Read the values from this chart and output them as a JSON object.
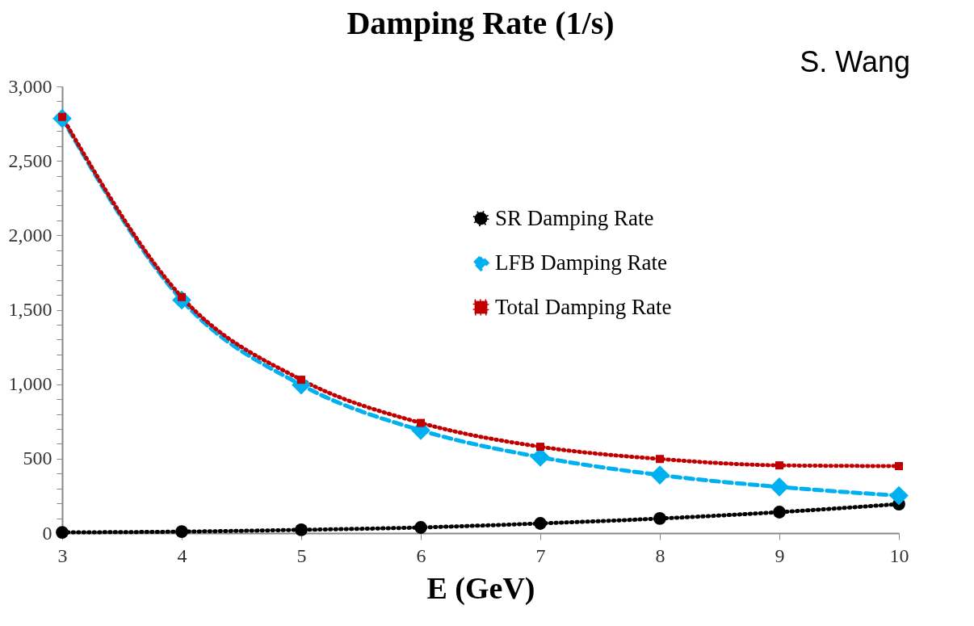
{
  "chart_data": {
    "type": "line",
    "title": "Damping Rate (1/s)",
    "xlabel": "E (GeV)",
    "annotations": [
      "S. Wang"
    ],
    "x": [
      3,
      4,
      5,
      6,
      7,
      8,
      9,
      10
    ],
    "xlim": [
      3,
      10
    ],
    "xticks": [
      3,
      4,
      5,
      6,
      7,
      8,
      9,
      10
    ],
    "ylim": [
      0,
      3000
    ],
    "yticks": [
      {
        "value": 0,
        "label": "0"
      },
      {
        "value": 100,
        "label": null
      },
      {
        "value": 200,
        "label": null
      },
      {
        "value": 300,
        "label": null
      },
      {
        "value": 400,
        "label": null
      },
      {
        "value": 500,
        "label": "500"
      },
      {
        "value": 600,
        "label": null
      },
      {
        "value": 700,
        "label": null
      },
      {
        "value": 800,
        "label": null
      },
      {
        "value": 900,
        "label": null
      },
      {
        "value": 1000,
        "label": "1,000"
      },
      {
        "value": 1100,
        "label": null
      },
      {
        "value": 1200,
        "label": null
      },
      {
        "value": 1300,
        "label": null
      },
      {
        "value": 1400,
        "label": null
      },
      {
        "value": 1500,
        "label": "1,500"
      },
      {
        "value": 1600,
        "label": null
      },
      {
        "value": 1700,
        "label": null
      },
      {
        "value": 1800,
        "label": null
      },
      {
        "value": 1900,
        "label": null
      },
      {
        "value": 2000,
        "label": "2,000"
      },
      {
        "value": 2100,
        "label": null
      },
      {
        "value": 2200,
        "label": null
      },
      {
        "value": 2300,
        "label": null
      },
      {
        "value": 2400,
        "label": null
      },
      {
        "value": 2500,
        "label": "2,500"
      },
      {
        "value": 2600,
        "label": null
      },
      {
        "value": 2700,
        "label": null
      },
      {
        "value": 2800,
        "label": null
      },
      {
        "value": 2900,
        "label": null
      },
      {
        "value": 3000,
        "label": "3,000"
      }
    ],
    "grid": false,
    "legend": "top right",
    "series": [
      {
        "name": "SR Damping Rate",
        "color": "#000000",
        "marker": "circle",
        "line_style": "dotted",
        "values": [
          5,
          10,
          22,
          38,
          65,
          98,
          141,
          195
        ]
      },
      {
        "name": "LFB Damping Rate",
        "color": "#00b0f0",
        "marker": "diamond",
        "line_style": "dashed",
        "values": [
          2785,
          1565,
          995,
          690,
          510,
          390,
          310,
          252
        ]
      },
      {
        "name": "Total Damping Rate",
        "color": "#c00000",
        "marker": "square",
        "line_style": "dotted",
        "values": [
          2795,
          1585,
          1030,
          740,
          580,
          498,
          455,
          450
        ]
      }
    ]
  }
}
